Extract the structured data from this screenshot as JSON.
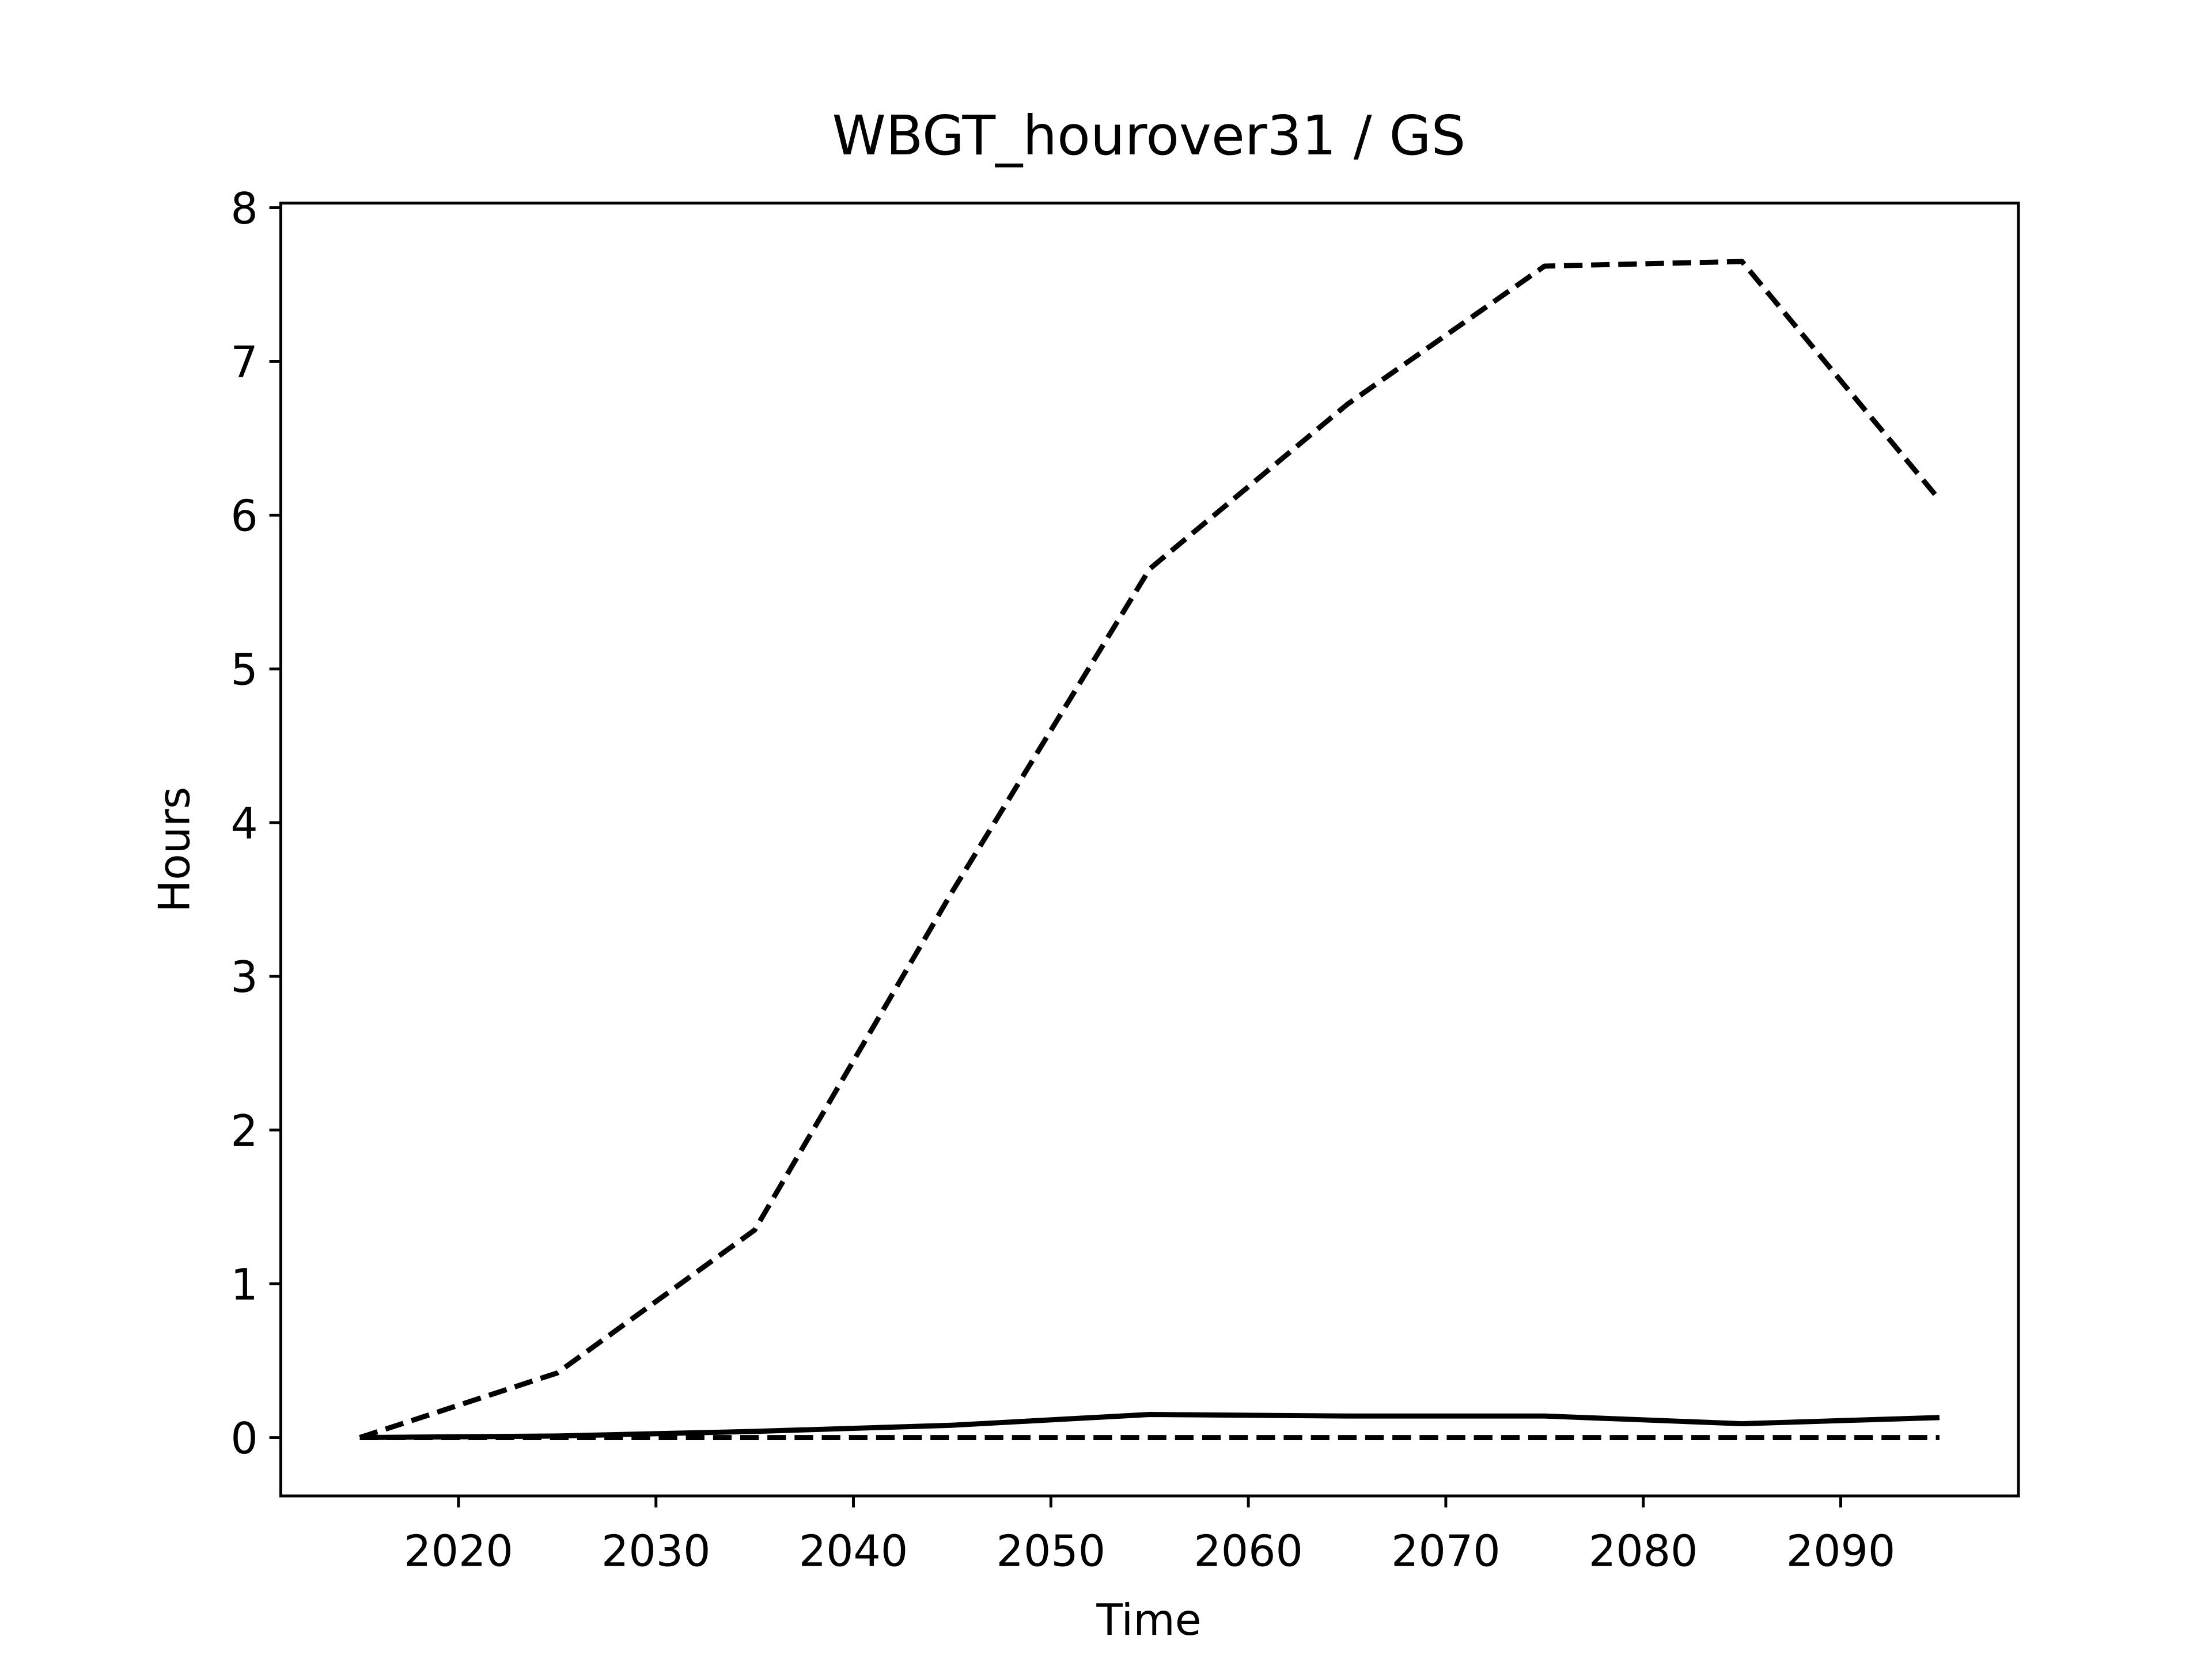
{
  "chart_data": {
    "type": "line",
    "title": "WBGT_hourover31 / GS",
    "xlabel": "Time",
    "ylabel": "Hours",
    "x": [
      2015,
      2025,
      2035,
      2045,
      2055,
      2065,
      2075,
      2085,
      2095
    ],
    "series": [
      {
        "color": "#000000",
        "linestyle": "dashed",
        "values": [
          0,
          0.42,
          1.35,
          3.55,
          5.65,
          6.72,
          7.62,
          7.65,
          6.1
        ]
      },
      {
        "color": "#000000",
        "linestyle": "solid",
        "values": [
          0,
          0.01,
          0.04,
          0.08,
          0.15,
          0.14,
          0.14,
          0.09,
          0.13
        ]
      },
      {
        "color": "#000000",
        "linestyle": "dashed",
        "values": [
          0,
          0,
          0,
          0,
          0,
          0,
          0,
          0,
          0
        ]
      }
    ],
    "xlim": [
      2011,
      2099
    ],
    "ylim": [
      -0.38,
      8.03
    ],
    "xticks": [
      2020,
      2030,
      2040,
      2050,
      2060,
      2070,
      2080,
      2090
    ],
    "yticks": [
      0,
      1,
      2,
      3,
      4,
      5,
      6,
      7,
      8
    ],
    "grid": false
  }
}
